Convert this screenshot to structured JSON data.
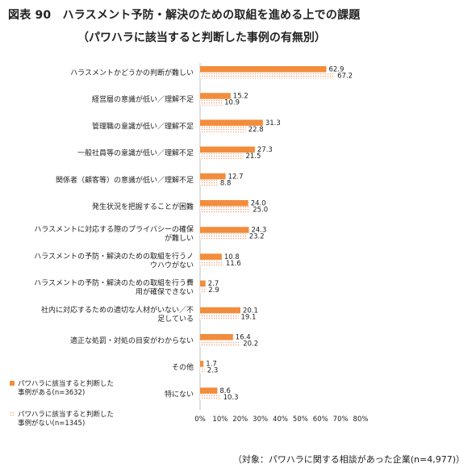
{
  "title": "図表 90　ハラスメント予防・解決のための取組を進める上での課題",
  "subtitle": "（パワハラに該当すると判断した事例の有無別）",
  "note": "（対象：パワハラに関する相談があった企業(n=4,977)）",
  "colors": {
    "with_case": "#f28d3c",
    "without_case": "#f2a27a"
  },
  "chart_data": {
    "type": "bar",
    "orientation": "horizontal",
    "title": "",
    "xlabel": "",
    "ylabel": "",
    "xlim": [
      0,
      80
    ],
    "ticks": [
      "0%",
      "10%",
      "20%",
      "30%",
      "40%",
      "50%",
      "60%",
      "70%",
      "80%"
    ],
    "grid": false,
    "legend_position": "bottom-left",
    "categories": [
      [
        "ハラスメントかどうかの判断が難しい"
      ],
      [
        "経営層の意識が低い／理解不足"
      ],
      [
        "管理職の意識が低い／理解不足"
      ],
      [
        "一般社員等の意識が低い／理解不足"
      ],
      [
        "関係者（顧客等）の意識が低い／理解不足"
      ],
      [
        "発生状況を把握することが困難"
      ],
      [
        "ハラスメントに対応する際のプライバシーの確保",
        "が難しい"
      ],
      [
        "ハラスメントの予防・解決のための取組を行うノ",
        "ウハウがない"
      ],
      [
        "ハラスメントの予防・解決のための取組を行う費",
        "用が確保できない"
      ],
      [
        "社内に対応するための適切な人材がいない／不",
        "足している"
      ],
      [
        "適正な処罰・対処の目安がわからない"
      ],
      [
        "その他"
      ],
      [
        "特にない"
      ]
    ],
    "series": [
      {
        "name": [
          "パワハラに該当すると判断した",
          "事例がある(n=3632)"
        ],
        "values": [
          62.9,
          15.2,
          31.3,
          27.3,
          12.7,
          24.0,
          24.3,
          10.8,
          2.7,
          20.1,
          16.4,
          1.7,
          8.6
        ],
        "labels": [
          "62.9",
          "15.2",
          "31.3",
          "27.3",
          "12.7",
          "24.0",
          "24.3",
          "10.8",
          "2.7",
          "20.1",
          "16.4",
          "1.7",
          "8.6"
        ],
        "style": "solid"
      },
      {
        "name": [
          "パワハラに該当すると判断した",
          "事例がない(n=1345)"
        ],
        "values": [
          67.2,
          10.9,
          22.8,
          21.5,
          8.8,
          25.0,
          23.2,
          11.6,
          2.9,
          19.1,
          20.2,
          2.3,
          10.3
        ],
        "labels": [
          "67.2",
          "10.9",
          "22.8",
          "21.5",
          "8.8",
          "25.0",
          "23.2",
          "11.6",
          "2.9",
          "19.1",
          "20.2",
          "2.3",
          "10.3"
        ],
        "style": "dotted"
      }
    ]
  }
}
